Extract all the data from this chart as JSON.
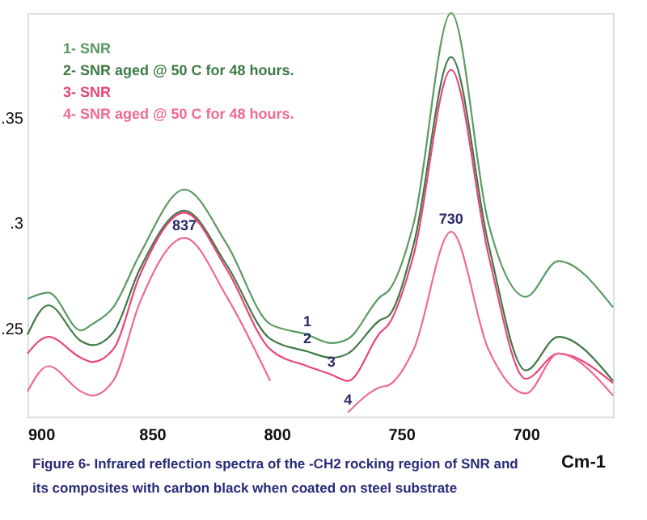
{
  "chart_data": {
    "type": "line",
    "xlabel": "Cm-1",
    "x": [
      900,
      891.6,
      878.6,
      874,
      865.6,
      855,
      837,
      820,
      802.6,
      787.7,
      778,
      771.4,
      758.4,
      755,
      745,
      730,
      715,
      700,
      687,
      665
    ],
    "series": [
      {
        "name": "1- SNR",
        "color": "#5a9a62",
        "values": [
          0.264,
          0.267,
          0.249,
          0.252,
          0.26,
          0.285,
          0.316,
          0.29,
          0.252,
          0.247,
          0.243,
          0.245,
          0.265,
          0.268,
          0.3,
          0.4,
          0.3,
          0.265,
          0.282,
          0.26
        ]
      },
      {
        "name": "2- SNR aged @ 50 C for 48 hours.",
        "color": "#3d7a45",
        "values": [
          0.247,
          0.261,
          0.244,
          0.242,
          0.248,
          0.278,
          0.306,
          0.28,
          0.245,
          0.239,
          0.236,
          0.238,
          0.254,
          0.256,
          0.29,
          0.379,
          0.29,
          0.23,
          0.246,
          0.225
        ]
      },
      {
        "name": "3- SNR",
        "color": "#e8457a",
        "values": [
          0.238,
          0.246,
          0.236,
          0.234,
          0.24,
          0.275,
          0.305,
          0.278,
          0.24,
          0.232,
          0.228,
          0.225,
          0.248,
          0.252,
          0.285,
          0.373,
          0.285,
          0.226,
          0.238,
          0.224
        ]
      },
      {
        "name": "4- SNR aged @ 50 C for 48 hours.",
        "color": "#f06a92",
        "values": [
          0.22,
          0.232,
          0.22,
          0.218,
          0.225,
          0.262,
          0.293,
          0.265,
          0.225,
          null,
          null,
          0.21,
          0.222,
          0.223,
          0.24,
          0.296,
          0.24,
          0.219,
          0.238,
          0.218
        ]
      }
    ],
    "xlim": [
      900,
      665
    ],
    "xticks": [
      900,
      850,
      800,
      750,
      700
    ],
    "ylim": [
      0.208,
      0.4
    ],
    "yticks": [
      {
        "value": 0.25,
        "label": ".25"
      },
      {
        "value": 0.3,
        "label": ".3"
      },
      {
        "value": 0.35,
        "label": ".35"
      }
    ],
    "grid": false,
    "legend": "top left",
    "marker": "none",
    "line_style": "solid",
    "annotations": [
      {
        "text": "837",
        "x": 837,
        "y": 0.293
      },
      {
        "text": "730",
        "x": 730,
        "y": 0.296
      },
      {
        "text": "1",
        "x": 787.7,
        "y": 0.247
      },
      {
        "text": "2",
        "x": 787.7,
        "y": 0.239
      },
      {
        "text": "3",
        "x": 778,
        "y": 0.228
      },
      {
        "text": "4",
        "x": 771.4,
        "y": 0.21
      },
      "Figure 6- Infrared reflection spectra of the -CH2 rocking region of SNR and",
      "its composites with carbon black when coated on steel substrate"
    ]
  }
}
